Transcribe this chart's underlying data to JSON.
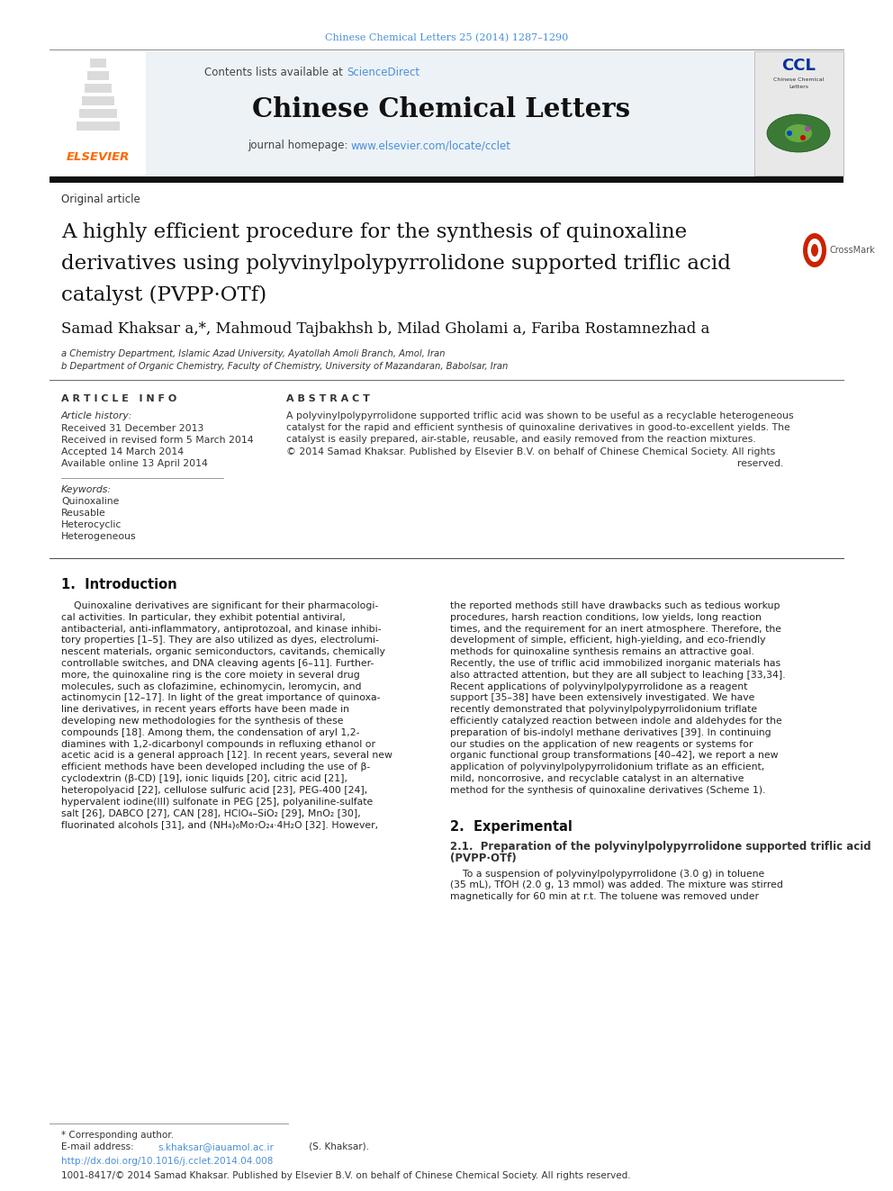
{
  "bg_color": "#ffffff",
  "top_journal_text": "Chinese Chemical Letters 25 (2014) 1287–1290",
  "top_journal_color": "#4a90d9",
  "sciencedirect_color": "#4a90d9",
  "journal_name": "Chinese Chemical Letters",
  "homepage_url_color": "#4a90d9",
  "article_type": "Original article",
  "paper_title_line1": "A highly efficient procedure for the synthesis of quinoxaline",
  "paper_title_line2": "derivatives using polyvinylpolypyrrolidone supported triflic acid",
  "paper_title_line3": "catalyst (PVPP·OTf)",
  "authors_str": "Samad Khaksar a,*, Mahmoud Tajbakhsh b, Milad Gholami a, Fariba Rostamnezhad a",
  "affil_a": "a Chemistry Department, Islamic Azad University, Ayatollah Amoli Branch, Amol, Iran",
  "affil_b": "b Department of Organic Chemistry, Faculty of Chemistry, University of Mazandaran, Babolsar, Iran",
  "article_info_header": "A R T I C L E   I N F O",
  "abstract_header": "A B S T R A C T",
  "article_history_label": "Article history:",
  "received": "Received 31 December 2013",
  "revised": "Received in revised form 5 March 2014",
  "accepted": "Accepted 14 March 2014",
  "available": "Available online 13 April 2014",
  "keywords_label": "Keywords:",
  "keywords": [
    "Quinoxaline",
    "Reusable",
    "Heterocyclic",
    "Heterogeneous"
  ],
  "abstract_line1": "A polyvinylpolypyrrolidone supported triflic acid was shown to be useful as a recyclable heterogeneous",
  "abstract_line2": "catalyst for the rapid and efficient synthesis of quinoxaline derivatives in good-to-excellent yields. The",
  "abstract_line3": "catalyst is easily prepared, air-stable, reusable, and easily removed from the reaction mixtures.",
  "abstract_line4": "© 2014 Samad Khaksar. Published by Elsevier B.V. on behalf of Chinese Chemical Society. All rights",
  "abstract_line5": "reserved.",
  "intro_header": "1.  Introduction",
  "intro_col1_lines": [
    "    Quinoxaline derivatives are significant for their pharmacologi-",
    "cal activities. In particular, they exhibit potential antiviral,",
    "antibacterial, anti-inflammatory, antiprotozoal, and kinase inhibi-",
    "tory properties [1–5]. They are also utilized as dyes, electrolumi-",
    "nescent materials, organic semiconductors, cavitands, chemically",
    "controllable switches, and DNA cleaving agents [6–11]. Further-",
    "more, the quinoxaline ring is the core moiety in several drug",
    "molecules, such as clofazimine, echinomycin, leromycin, and",
    "actinomycin [12–17]. In light of the great importance of quinoxa-",
    "line derivatives, in recent years efforts have been made in",
    "developing new methodologies for the synthesis of these",
    "compounds [18]. Among them, the condensation of aryl 1,2-",
    "diamines with 1,2-dicarbonyl compounds in refluxing ethanol or",
    "acetic acid is a general approach [12]. In recent years, several new",
    "efficient methods have been developed including the use of β-",
    "cyclodextrin (β-CD) [19], ionic liquids [20], citric acid [21],",
    "heteropolyacid [22], cellulose sulfuric acid [23], PEG-400 [24],",
    "hypervalent iodine(III) sulfonate in PEG [25], polyaniline-sulfate",
    "salt [26], DABCO [27], CAN [28], HClO₄–SiO₂ [29], MnO₂ [30],",
    "fluorinated alcohols [31], and (NH₄)₆Mo₇O₂₄·4H₂O [32]. However,"
  ],
  "intro_col2_lines": [
    "the reported methods still have drawbacks such as tedious workup",
    "procedures, harsh reaction conditions, low yields, long reaction",
    "times, and the requirement for an inert atmosphere. Therefore, the",
    "development of simple, efficient, high-yielding, and eco-friendly",
    "methods for quinoxaline synthesis remains an attractive goal.",
    "Recently, the use of triflic acid immobilized inorganic materials has",
    "also attracted attention, but they are all subject to leaching [33,34].",
    "Recent applications of polyvinylpolypyrrolidone as a reagent",
    "support [35–38] have been extensively investigated. We have",
    "recently demonstrated that polyvinylpolypyrrolidonium triflate",
    "efficiently catalyzed reaction between indole and aldehydes for the",
    "preparation of bis-indolyl methane derivatives [39]. In continuing",
    "our studies on the application of new reagents or systems for",
    "organic functional group transformations [40–42], we report a new",
    "application of polyvinylpolypyrrolidonium triflate as an efficient,",
    "mild, noncorrosive, and recyclable catalyst in an alternative",
    "method for the synthesis of quinoxaline derivatives (Scheme 1)."
  ],
  "section2_header": "2.  Experimental",
  "section21_header_line1": "2.1.  Preparation of the polyvinylpolypyrrolidone supported triflic acid",
  "section21_header_line2": "(PVPP·OTf)",
  "sec21_lines": [
    "    To a suspension of polyvinylpolypyrrolidone (3.0 g) in toluene",
    "(35 mL), TfOH (2.0 g, 13 mmol) was added. The mixture was stirred",
    "magnetically for 60 min at r.t. The toluene was removed under"
  ],
  "footnote_star": "* Corresponding author.",
  "footnote_email_label": "E-mail address: ",
  "footnote_email": "s.khaksar@iauamol.ac.ir",
  "footnote_email_rest": " (S. Khaksar).",
  "doi_text": "http://dx.doi.org/10.1016/j.cclet.2014.04.008",
  "copyright_text": "1001-8417/© 2014 Samad Khaksar. Published by Elsevier B.V. on behalf of Chinese Chemical Society. All rights reserved."
}
